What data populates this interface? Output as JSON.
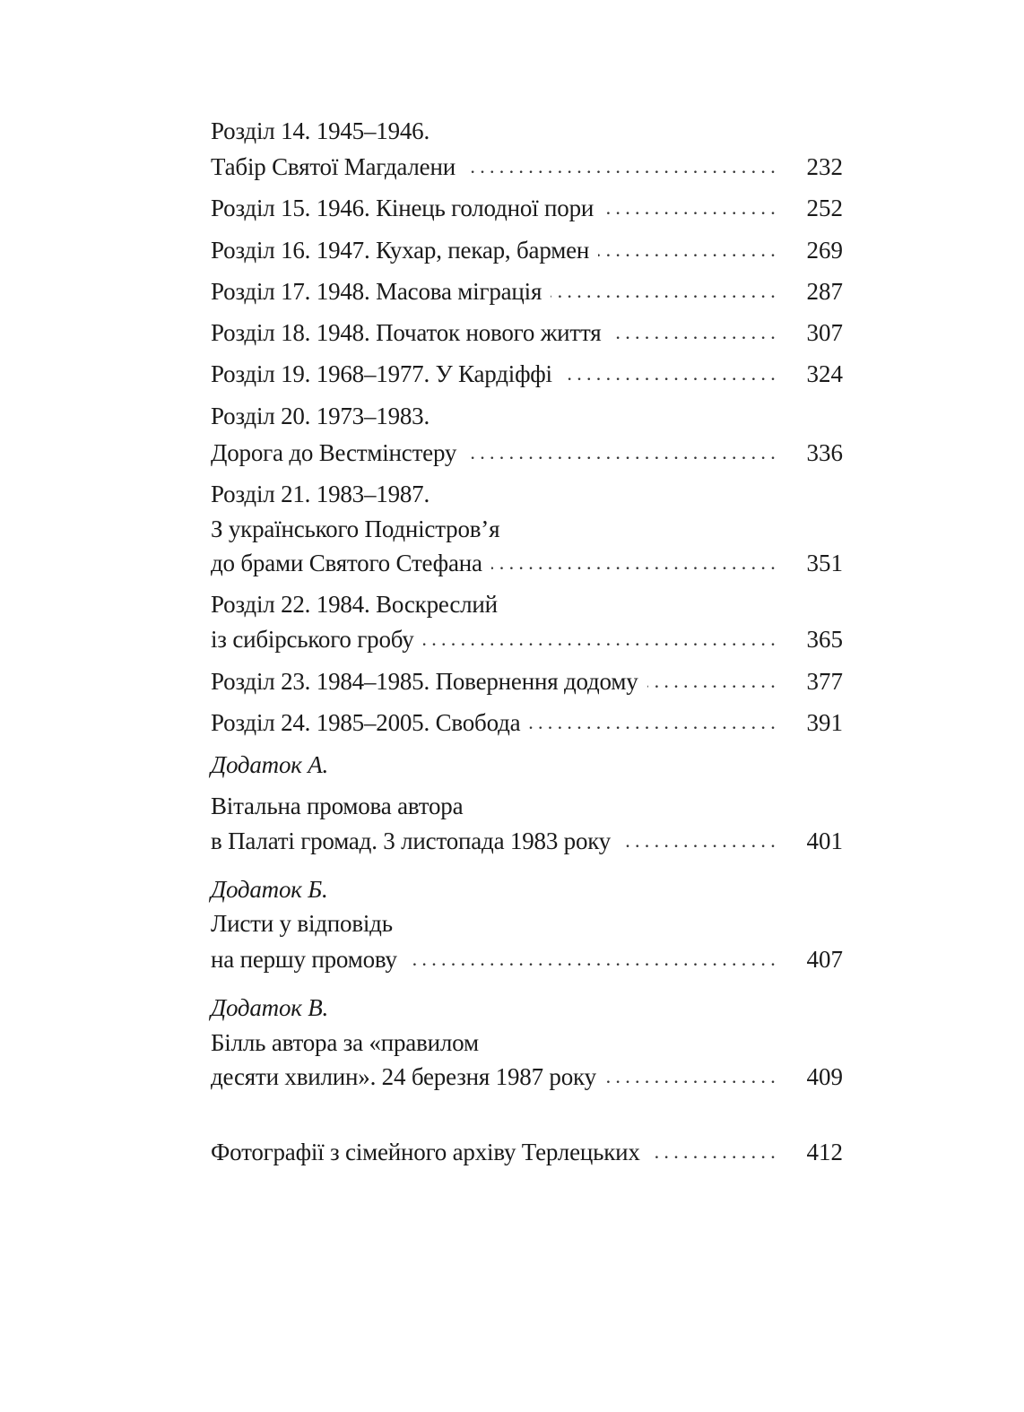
{
  "toc": [
    {
      "text": "Розділ 14. 1945–1946."
    },
    {
      "text": "Табір Святої Магдалени",
      "page": "232"
    },
    {
      "text": "Розділ 15. 1946. Кінець голодної пори",
      "page": "252"
    },
    {
      "text": "Розділ 16. 1947. Кухар, пекар, бармен",
      "page": "269"
    },
    {
      "text": "Розділ 17. 1948. Масова міграція",
      "page": "287"
    },
    {
      "text": "Розділ 18. 1948. Початок нового життя",
      "page": "307"
    },
    {
      "text": "Розділ 19. 1968–1977. У Кардіффі",
      "page": "324"
    },
    {
      "text": "Розділ 20. 1973–1983."
    },
    {
      "text": "Дорога до Вестмінстеру",
      "page": "336"
    },
    {
      "text": "Розділ 21. 1983–1987."
    },
    {
      "text": "З українського Подністров’я"
    },
    {
      "text": "до брами Святого Стефана",
      "page": "351"
    },
    {
      "text": "Розділ 22. 1984. Воскреслий"
    },
    {
      "text": "із сибірського гробу",
      "page": "365"
    },
    {
      "text": "Розділ 23. 1984–1985. Повернення додому",
      "page": "377"
    },
    {
      "text": "Розділ 24. 1985–2005. Свобода",
      "page": "391"
    },
    {
      "text": "Додаток А.",
      "italic": true
    },
    {
      "text": "Вітальна промова автора"
    },
    {
      "text": "в Палаті громад. 3 листопада 1983 року",
      "page": "401"
    },
    {
      "text": "Додаток Б.",
      "italic": true
    },
    {
      "text": "Листи у відповідь"
    },
    {
      "text": "на першу промову",
      "page": "407"
    },
    {
      "text": "Додаток В.",
      "italic": true
    },
    {
      "text": "Білль автора за «правилом"
    },
    {
      "text": "десяти хвилин». 24 березня 1987 року",
      "page": "409"
    },
    {
      "text": "Фотографії з сімейного архіву Терлецьких",
      "page": "412"
    }
  ]
}
